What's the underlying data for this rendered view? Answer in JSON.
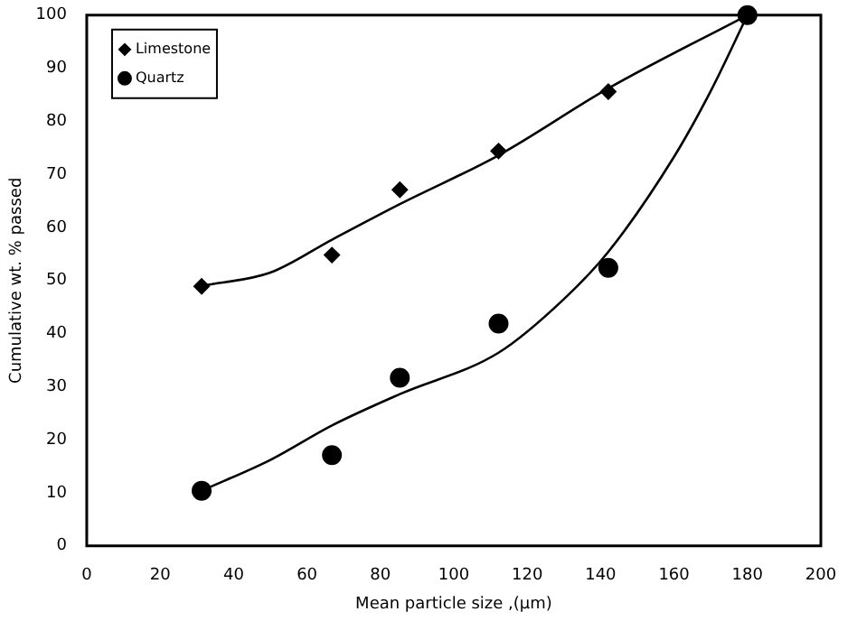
{
  "chart_data": {
    "type": "scatter",
    "xlabel": "Mean particle size ,(μm)",
    "ylabel": "Cumulative wt. % passed",
    "xlim": [
      0,
      200
    ],
    "xticks": [
      0,
      20,
      40,
      60,
      80,
      100,
      120,
      140,
      160,
      180,
      200
    ],
    "ylim": [
      0,
      100
    ],
    "yticks": [
      0,
      10,
      20,
      30,
      40,
      50,
      60,
      70,
      80,
      90,
      100
    ],
    "grid": false,
    "legend": "top left",
    "series": [
      {
        "name": "Limestone",
        "marker": "diamond",
        "color": "#000000",
        "x": [
          31.3,
          66.8,
          85.3,
          112.2,
          142.1
        ],
        "values": [
          48.9,
          54.8,
          67.1,
          74.4,
          85.6
        ]
      },
      {
        "name": "Quartz",
        "marker": "circle",
        "color": "#000000",
        "x": [
          31.3,
          66.8,
          85.3,
          112.2,
          142.1,
          180
        ],
        "values": [
          10.4,
          17.1,
          31.7,
          41.9,
          52.4,
          100
        ]
      },
      {
        "type": "line",
        "marker": "none",
        "line_style": "solid",
        "color": "#000000",
        "x": [
          31.3,
          50,
          66.8,
          85.3,
          112.2,
          142.1,
          180
        ],
        "values": [
          49,
          51.5,
          57.7,
          64.4,
          73.6,
          86.2,
          100
        ]
      },
      {
        "type": "line",
        "marker": "none",
        "line_style": "solid",
        "color": "#000000",
        "x": [
          31.3,
          50,
          66.8,
          85.3,
          112.2,
          130,
          142.1,
          160,
          170,
          180
        ],
        "values": [
          10.4,
          16.2,
          22.7,
          28.6,
          36.4,
          46.5,
          55.4,
          73.3,
          85.7,
          100
        ]
      }
    ]
  }
}
